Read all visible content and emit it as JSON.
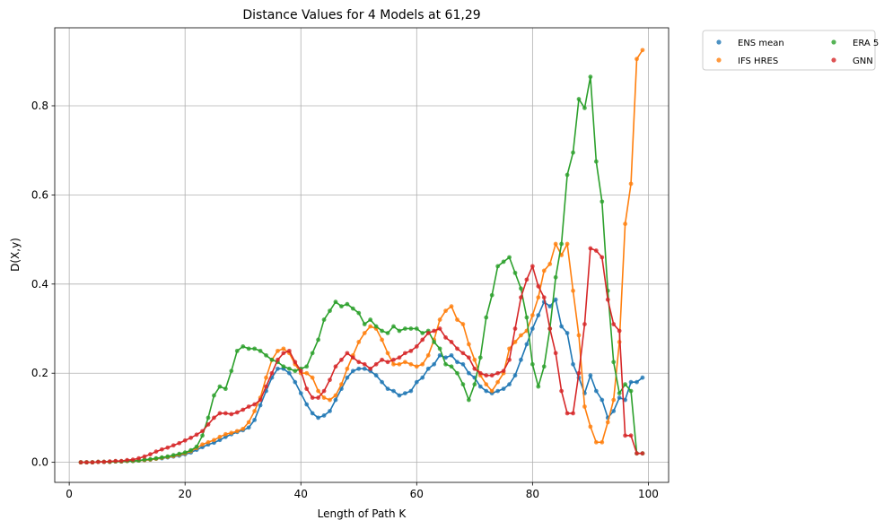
{
  "chart_data": {
    "type": "line",
    "title": "Distance Values for 4 Models at 61,29",
    "xlabel": "Length of Path K",
    "ylabel": "D(X,y)",
    "xlim": [
      -2.5,
      103.5
    ],
    "ylim": [
      -0.045,
      0.975
    ],
    "xticks": [
      0,
      20,
      40,
      60,
      80,
      100
    ],
    "xtick_labels": [
      "0",
      "20",
      "40",
      "60",
      "80",
      "100"
    ],
    "yticks": [
      0.0,
      0.2,
      0.4,
      0.6,
      0.8
    ],
    "ytick_labels": [
      "0.0",
      "0.2",
      "0.4",
      "0.6",
      "0.8"
    ],
    "grid": true,
    "legend_position": "outside-top-right",
    "x": [
      2,
      3,
      4,
      5,
      6,
      7,
      8,
      9,
      10,
      11,
      12,
      13,
      14,
      15,
      16,
      17,
      18,
      19,
      20,
      21,
      22,
      23,
      24,
      25,
      26,
      27,
      28,
      29,
      30,
      31,
      32,
      33,
      34,
      35,
      36,
      37,
      38,
      39,
      40,
      41,
      42,
      43,
      44,
      45,
      46,
      47,
      48,
      49,
      50,
      51,
      52,
      53,
      54,
      55,
      56,
      57,
      58,
      59,
      60,
      61,
      62,
      63,
      64,
      65,
      66,
      67,
      68,
      69,
      70,
      71,
      72,
      73,
      74,
      75,
      76,
      77,
      78,
      79,
      80,
      81,
      82,
      83,
      84,
      85,
      86,
      87,
      88,
      89,
      90,
      91,
      92,
      93,
      94,
      95,
      96,
      97,
      98,
      99
    ],
    "series": [
      {
        "name": "ENS mean",
        "color": "#1f77b4",
        "values": [
          0.0,
          0.0,
          0.0,
          0.001,
          0.001,
          0.001,
          0.002,
          0.002,
          0.003,
          0.003,
          0.004,
          0.005,
          0.006,
          0.008,
          0.009,
          0.011,
          0.013,
          0.015,
          0.018,
          0.022,
          0.028,
          0.034,
          0.04,
          0.044,
          0.05,
          0.057,
          0.063,
          0.068,
          0.072,
          0.078,
          0.095,
          0.128,
          0.16,
          0.19,
          0.21,
          0.21,
          0.2,
          0.18,
          0.155,
          0.13,
          0.11,
          0.1,
          0.105,
          0.115,
          0.14,
          0.165,
          0.19,
          0.205,
          0.21,
          0.21,
          0.205,
          0.195,
          0.18,
          0.165,
          0.16,
          0.15,
          0.155,
          0.16,
          0.18,
          0.19,
          0.21,
          0.22,
          0.24,
          0.235,
          0.24,
          0.225,
          0.22,
          0.2,
          0.19,
          0.17,
          0.16,
          0.155,
          0.16,
          0.165,
          0.175,
          0.195,
          0.23,
          0.265,
          0.3,
          0.33,
          0.36,
          0.35,
          0.365,
          0.305,
          0.29,
          0.22,
          0.19,
          0.155,
          0.195,
          0.16,
          0.14,
          0.1,
          0.115,
          0.145,
          0.14,
          0.18,
          0.18,
          0.19
        ]
      },
      {
        "name": "IFS HRES",
        "color": "#ff7f0e",
        "values": [
          0.0,
          0.0,
          0.0,
          0.001,
          0.001,
          0.001,
          0.002,
          0.002,
          0.003,
          0.003,
          0.004,
          0.005,
          0.006,
          0.008,
          0.01,
          0.012,
          0.014,
          0.017,
          0.02,
          0.025,
          0.032,
          0.04,
          0.045,
          0.05,
          0.057,
          0.063,
          0.066,
          0.07,
          0.075,
          0.09,
          0.115,
          0.145,
          0.19,
          0.23,
          0.25,
          0.255,
          0.245,
          0.22,
          0.2,
          0.2,
          0.19,
          0.16,
          0.145,
          0.14,
          0.15,
          0.175,
          0.21,
          0.24,
          0.27,
          0.29,
          0.305,
          0.3,
          0.275,
          0.245,
          0.22,
          0.22,
          0.225,
          0.22,
          0.215,
          0.22,
          0.24,
          0.275,
          0.32,
          0.34,
          0.35,
          0.32,
          0.31,
          0.265,
          0.23,
          0.195,
          0.175,
          0.16,
          0.18,
          0.2,
          0.255,
          0.27,
          0.285,
          0.295,
          0.33,
          0.37,
          0.43,
          0.445,
          0.49,
          0.465,
          0.49,
          0.385,
          0.285,
          0.125,
          0.08,
          0.045,
          0.045,
          0.09,
          0.14,
          0.27,
          0.535,
          0.625,
          0.905,
          0.925
        ]
      },
      {
        "name": "ERA 5",
        "color": "#2ca02c",
        "values": [
          0.0,
          0.0,
          0.0,
          0.001,
          0.001,
          0.001,
          0.002,
          0.002,
          0.003,
          0.003,
          0.004,
          0.006,
          0.007,
          0.009,
          0.011,
          0.013,
          0.016,
          0.019,
          0.022,
          0.027,
          0.035,
          0.06,
          0.1,
          0.15,
          0.17,
          0.165,
          0.205,
          0.25,
          0.26,
          0.255,
          0.255,
          0.25,
          0.24,
          0.23,
          0.225,
          0.215,
          0.21,
          0.205,
          0.21,
          0.215,
          0.245,
          0.275,
          0.32,
          0.34,
          0.36,
          0.35,
          0.355,
          0.345,
          0.335,
          0.31,
          0.32,
          0.305,
          0.295,
          0.29,
          0.305,
          0.295,
          0.3,
          0.3,
          0.3,
          0.29,
          0.295,
          0.27,
          0.255,
          0.22,
          0.215,
          0.2,
          0.175,
          0.14,
          0.175,
          0.235,
          0.325,
          0.375,
          0.44,
          0.45,
          0.46,
          0.425,
          0.39,
          0.325,
          0.22,
          0.17,
          0.215,
          0.3,
          0.415,
          0.49,
          0.645,
          0.695,
          0.815,
          0.795,
          0.865,
          0.675,
          0.585,
          0.385,
          0.225,
          0.155,
          0.175,
          0.16,
          0.02,
          0.02
        ]
      },
      {
        "name": "GNN",
        "color": "#d62728",
        "values": [
          0.0,
          0.0,
          0.0,
          0.001,
          0.001,
          0.002,
          0.003,
          0.003,
          0.005,
          0.006,
          0.009,
          0.013,
          0.018,
          0.024,
          0.029,
          0.033,
          0.038,
          0.043,
          0.049,
          0.055,
          0.062,
          0.07,
          0.085,
          0.1,
          0.11,
          0.11,
          0.108,
          0.112,
          0.118,
          0.125,
          0.13,
          0.14,
          0.17,
          0.2,
          0.23,
          0.245,
          0.25,
          0.225,
          0.205,
          0.165,
          0.145,
          0.145,
          0.16,
          0.185,
          0.215,
          0.23,
          0.245,
          0.235,
          0.225,
          0.22,
          0.21,
          0.22,
          0.23,
          0.225,
          0.23,
          0.235,
          0.245,
          0.25,
          0.26,
          0.275,
          0.29,
          0.295,
          0.3,
          0.28,
          0.27,
          0.255,
          0.245,
          0.235,
          0.21,
          0.2,
          0.195,
          0.195,
          0.2,
          0.205,
          0.23,
          0.3,
          0.37,
          0.41,
          0.44,
          0.395,
          0.37,
          0.3,
          0.245,
          0.16,
          0.11,
          0.11,
          0.2,
          0.31,
          0.48,
          0.475,
          0.46,
          0.365,
          0.31,
          0.295,
          0.06,
          0.06,
          0.02,
          0.02
        ]
      }
    ]
  }
}
